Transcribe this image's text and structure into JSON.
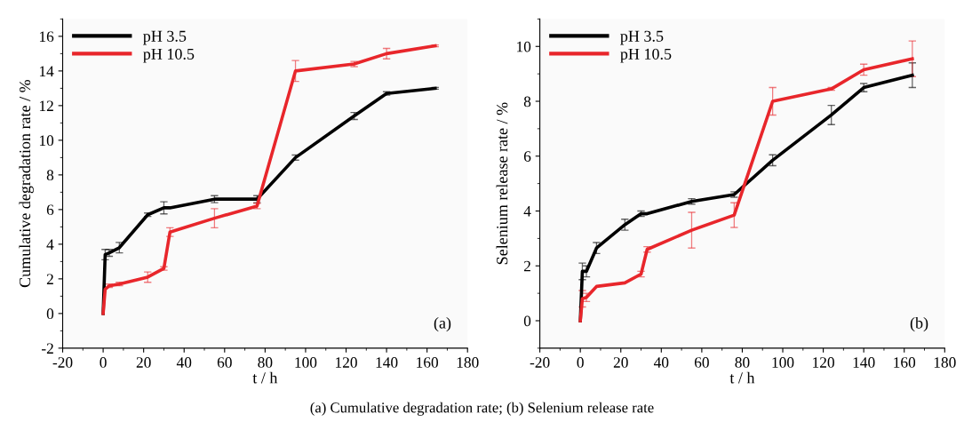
{
  "chart_data": [
    {
      "type": "line",
      "ylabel": "Cumulative degradation rate / %",
      "xlabel": "t / h",
      "xlim": [
        -20,
        180
      ],
      "xticks": [
        -20,
        0,
        20,
        40,
        60,
        80,
        100,
        120,
        140,
        160,
        180
      ],
      "ylim": [
        -2,
        17
      ],
      "yticks": [
        -2,
        0,
        2,
        4,
        6,
        8,
        10,
        12,
        14,
        16
      ],
      "legend": "top left",
      "grid": false,
      "x": [
        0,
        1,
        3,
        8,
        22,
        30,
        33,
        55,
        76,
        95,
        124,
        140,
        164
      ],
      "series": [
        {
          "name": "pH 3.5",
          "color": "#000000",
          "values": [
            0,
            3.4,
            3.5,
            3.8,
            5.7,
            6.1,
            6.1,
            6.6,
            6.6,
            9.0,
            11.4,
            12.7,
            13.0
          ],
          "errors": [
            null,
            0.3,
            0.2,
            0.3,
            0.1,
            0.35,
            null,
            0.2,
            0.2,
            0.15,
            0.2,
            0.1,
            0.05
          ]
        },
        {
          "name": "pH 10.5",
          "color": "#e8262b",
          "values": [
            0,
            1.4,
            1.6,
            1.7,
            2.1,
            2.6,
            4.7,
            5.5,
            6.2,
            14.0,
            14.4,
            15.0,
            15.45
          ],
          "errors": [
            null,
            null,
            0.1,
            0.1,
            0.3,
            0.1,
            0.25,
            0.55,
            0.15,
            0.6,
            0.15,
            0.3,
            0.05
          ]
        }
      ],
      "annotations": [
        "(a)",
        "(a) Cumulative degradation rate; (b) Selenium release rate"
      ]
    },
    {
      "type": "line",
      "ylabel": "Selenium release rate / %",
      "xlabel": "t / h",
      "xlim": [
        -20,
        180
      ],
      "xticks": [
        -20,
        0,
        20,
        40,
        60,
        80,
        100,
        120,
        140,
        160,
        180
      ],
      "ylim": [
        -1,
        11
      ],
      "yticks": [
        0,
        2,
        4,
        6,
        8,
        10
      ],
      "legend": "top left",
      "grid": false,
      "x": [
        0,
        1,
        3,
        8,
        22,
        30,
        33,
        55,
        76,
        95,
        124,
        140,
        164
      ],
      "series": [
        {
          "name": "pH 3.5",
          "color": "#000000",
          "values": [
            0,
            1.8,
            1.8,
            2.65,
            3.5,
            3.9,
            3.9,
            4.35,
            4.6,
            5.85,
            7.5,
            8.5,
            8.95
          ],
          "errors": [
            null,
            0.3,
            0.2,
            0.2,
            0.2,
            0.1,
            null,
            0.1,
            0.1,
            0.2,
            0.35,
            0.15,
            0.45
          ]
        },
        {
          "name": "pH 10.5",
          "color": "#e8262b",
          "values": [
            0,
            0.8,
            0.85,
            1.25,
            1.38,
            1.7,
            2.6,
            3.3,
            3.85,
            8.0,
            8.45,
            9.15,
            9.55
          ],
          "errors": [
            null,
            0.3,
            0.15,
            null,
            null,
            0.1,
            0.1,
            0.65,
            0.45,
            0.5,
            0.05,
            0.2,
            0.65
          ]
        }
      ],
      "annotations": [
        "(b)"
      ]
    }
  ]
}
